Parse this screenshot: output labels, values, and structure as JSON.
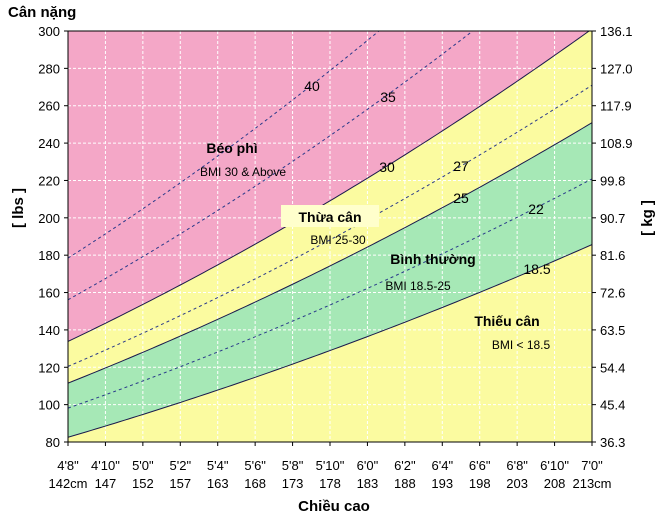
{
  "chart_data": {
    "type": "area",
    "title": "Cân nặng",
    "xlabel": "Chiều cao",
    "ylabel_left": "[ lbs ]",
    "ylabel_right": "[ kg ]",
    "x_ticks_ftin": [
      "4'8\"",
      "4'10\"",
      "5'0\"",
      "5'2\"",
      "5'4\"",
      "5'6\"",
      "5'8\"",
      "5'10\"",
      "6'0\"",
      "6'2\"",
      "6'4\"",
      "6'6\"",
      "6'8\"",
      "6'10\"",
      "7'0\""
    ],
    "x_ticks_cm": [
      "142cm",
      "147",
      "152",
      "157",
      "163",
      "168",
      "173",
      "178",
      "183",
      "188",
      "193",
      "198",
      "203",
      "208",
      "213cm"
    ],
    "x_range_in": [
      56,
      84
    ],
    "y_ticks_lbs": [
      "80",
      "100",
      "120",
      "140",
      "160",
      "180",
      "200",
      "220",
      "240",
      "260",
      "280",
      "300"
    ],
    "y_ticks_kg": [
      "36.3",
      "45.4",
      "54.4",
      "63.5",
      "72.6",
      "81.6",
      "90.7",
      "99.8",
      "108.9",
      "117.9",
      "127.0",
      "136.1"
    ],
    "ylim_lbs": [
      80,
      300
    ],
    "grid": true,
    "bmi_boundaries": [
      18.5,
      25,
      30
    ],
    "bmi_guides": [
      22,
      27,
      35,
      40
    ],
    "bmi_curve_labels": [
      {
        "bmi": 40,
        "text": "40"
      },
      {
        "bmi": 35,
        "text": "35"
      },
      {
        "bmi": 30,
        "text": "30"
      },
      {
        "bmi": 27,
        "text": "27"
      },
      {
        "bmi": 25,
        "text": "25"
      },
      {
        "bmi": 22,
        "text": "22"
      },
      {
        "bmi": 18.5,
        "text": "18.5"
      }
    ],
    "zones": [
      {
        "key": "obese",
        "name": "Béo phì",
        "range": "BMI 30 & Above",
        "color": "#f4a7c7"
      },
      {
        "key": "overweight",
        "name": "Thừa cân",
        "range": "BMI 25-30",
        "color": "#fbfba0"
      },
      {
        "key": "normal",
        "name": "Bình thường",
        "range": "BMI 18.5-25",
        "color": "#a6e8b6"
      },
      {
        "key": "under",
        "name": "Thiếu cân",
        "range": "BMI < 18.5",
        "color": "#fbfba0"
      }
    ]
  },
  "colors": {
    "boundary_line": "#1a1a4d",
    "guide_line": "#2a3a8a",
    "grid": "#ffffff",
    "plot_border": "#000000"
  }
}
